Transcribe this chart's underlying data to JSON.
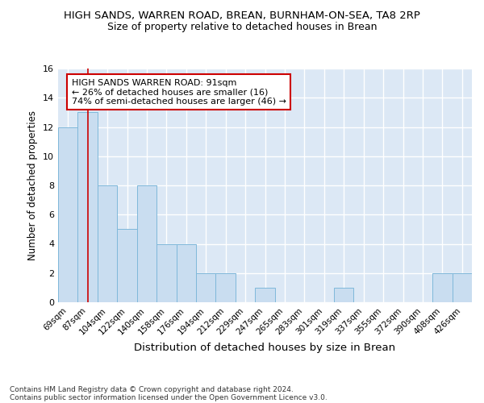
{
  "title1": "HIGH SANDS, WARREN ROAD, BREAN, BURNHAM-ON-SEA, TA8 2RP",
  "title2": "Size of property relative to detached houses in Brean",
  "xlabel": "Distribution of detached houses by size in Brean",
  "ylabel": "Number of detached properties",
  "footer1": "Contains HM Land Registry data © Crown copyright and database right 2024.",
  "footer2": "Contains public sector information licensed under the Open Government Licence v3.0.",
  "categories": [
    "69sqm",
    "87sqm",
    "104sqm",
    "122sqm",
    "140sqm",
    "158sqm",
    "176sqm",
    "194sqm",
    "212sqm",
    "229sqm",
    "247sqm",
    "265sqm",
    "283sqm",
    "301sqm",
    "319sqm",
    "337sqm",
    "355sqm",
    "372sqm",
    "390sqm",
    "408sqm",
    "426sqm"
  ],
  "values": [
    12,
    13,
    8,
    5,
    8,
    4,
    4,
    2,
    2,
    0,
    1,
    0,
    0,
    0,
    1,
    0,
    0,
    0,
    0,
    2,
    2
  ],
  "bar_color": "#c9ddf0",
  "bar_edge_color": "#7fb8da",
  "highlight_bar_index": 1,
  "highlight_line_color": "#cc0000",
  "annotation_box_text": "HIGH SANDS WARREN ROAD: 91sqm\n← 26% of detached houses are smaller (16)\n74% of semi-detached houses are larger (46) →",
  "ylim": [
    0,
    16
  ],
  "yticks": [
    0,
    2,
    4,
    6,
    8,
    10,
    12,
    14,
    16
  ],
  "background_color": "#dce8f5",
  "title1_fontsize": 9.5,
  "title2_fontsize": 9.0,
  "ylabel_fontsize": 8.5,
  "xlabel_fontsize": 9.5,
  "tick_fontsize": 7.5,
  "footer_fontsize": 6.5
}
